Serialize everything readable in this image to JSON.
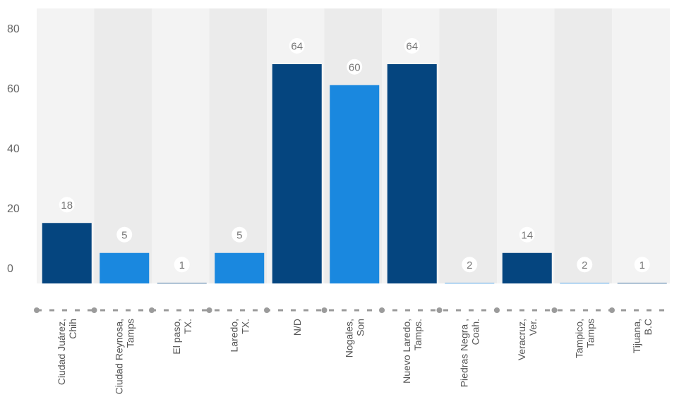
{
  "chart_data": {
    "type": "bar",
    "categories": [
      [
        "Ciudad Juárez,",
        "Chih"
      ],
      [
        "Ciudad Reynosa,",
        "Tamps"
      ],
      [
        "El paso,",
        "TX."
      ],
      [
        "Laredo,",
        "TX."
      ],
      [
        "N/D"
      ],
      [
        "Nogales,",
        "Son"
      ],
      [
        "Nuevo Laredo,",
        "Tamps."
      ],
      [
        "Piedras Negra ,",
        "Coah."
      ],
      [
        "Veracruz,",
        "Ver."
      ],
      [
        "Tampico,",
        "Tamps"
      ],
      [
        "Tijuana,",
        "B.C"
      ]
    ],
    "values": [
      18,
      5,
      1,
      5,
      64,
      60,
      64,
      2,
      14,
      2,
      1
    ],
    "bar_heights": [
      15,
      5,
      -5,
      5,
      68,
      61,
      68,
      -5,
      5,
      -5,
      -5
    ],
    "bar_colors": [
      "#05457f",
      "#1a88df",
      "#05457f",
      "#1a88df",
      "#05457f",
      "#1a88df",
      "#05457f",
      "#1a88df",
      "#05457f",
      "#1a88df",
      "#05457f"
    ],
    "yticks": [
      "0",
      "20",
      "40",
      "60",
      "80"
    ],
    "ylim": [
      0,
      80
    ],
    "grid": false,
    "legend": "none",
    "colors": {
      "dark_bar": "#05457f",
      "light_bar": "#1a88df",
      "band_light": "#f3f3f3",
      "band_dark": "#ebebeb",
      "axis_line": "#9b9b9b"
    }
  }
}
